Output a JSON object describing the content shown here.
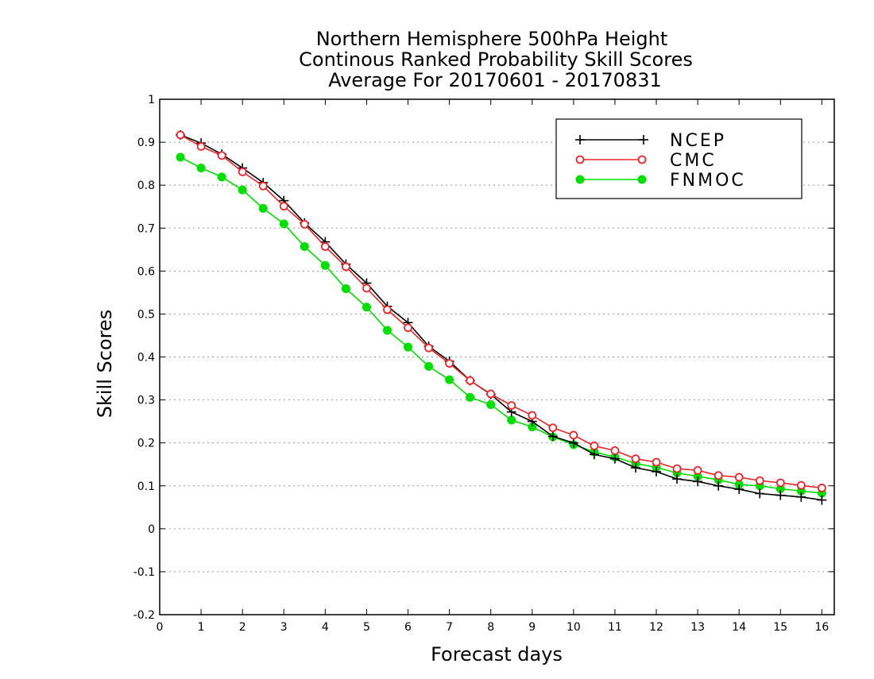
{
  "chart_data": {
    "type": "line",
    "title": "Northern Hemisphere 500hPa Height",
    "title_lines": [
      "Northern Hemisphere 500hPa Height",
      "Continous Ranked Probability Skill Scores",
      "Average For 20170601 - 20170831"
    ],
    "xlabel": "Forecast days",
    "ylabel": "Skill Scores",
    "xlim": [
      0,
      16.3
    ],
    "ylim": [
      -0.2,
      1
    ],
    "xticks": [
      "0",
      "1",
      "2",
      "3",
      "4",
      "5",
      "6",
      "7",
      "8",
      "9",
      "10",
      "11",
      "12",
      "13",
      "14",
      "15",
      "16"
    ],
    "yticks": [
      "-0.2",
      "-0.1",
      "0",
      "0.1",
      "0.2",
      "0.3",
      "0.4",
      "0.5",
      "0.6",
      "0.7",
      "0.8",
      "0.9",
      "1"
    ],
    "grid": true,
    "legend_position": "top-right",
    "x": [
      0.5,
      1,
      1.5,
      2,
      2.5,
      3,
      3.5,
      4,
      4.5,
      5,
      5.5,
      6,
      6.5,
      7,
      7.5,
      8,
      8.5,
      9,
      9.5,
      10,
      10.5,
      11,
      11.5,
      12,
      12.5,
      13,
      13.5,
      14,
      14.5,
      15,
      15.5,
      16
    ],
    "series": [
      {
        "name": "NCEP",
        "color": "#000000",
        "marker": "plus",
        "values": [
          0.917,
          0.898,
          0.872,
          0.84,
          0.806,
          0.764,
          0.712,
          0.668,
          0.616,
          0.572,
          0.518,
          0.48,
          0.425,
          0.39,
          0.345,
          0.313,
          0.272,
          0.25,
          0.215,
          0.2,
          0.173,
          0.163,
          0.142,
          0.133,
          0.116,
          0.11,
          0.1,
          0.092,
          0.082,
          0.078,
          0.074,
          0.067
        ]
      },
      {
        "name": "CMC",
        "color": "#e8262a",
        "marker": "open-circle",
        "values": [
          0.917,
          0.89,
          0.869,
          0.831,
          0.798,
          0.751,
          0.709,
          0.657,
          0.61,
          0.56,
          0.51,
          0.468,
          0.421,
          0.385,
          0.345,
          0.314,
          0.287,
          0.264,
          0.235,
          0.218,
          0.193,
          0.182,
          0.163,
          0.155,
          0.14,
          0.136,
          0.124,
          0.12,
          0.112,
          0.107,
          0.101,
          0.095
        ]
      },
      {
        "name": "FNMOC",
        "color": "#00dd00",
        "marker": "filled-circle",
        "values": [
          0.865,
          0.84,
          0.819,
          0.789,
          0.746,
          0.71,
          0.657,
          0.613,
          0.559,
          0.516,
          0.462,
          0.423,
          0.378,
          0.347,
          0.306,
          0.289,
          0.253,
          0.237,
          0.214,
          0.196,
          0.179,
          0.167,
          0.152,
          0.143,
          0.13,
          0.122,
          0.114,
          0.103,
          0.1,
          0.093,
          0.088,
          0.083
        ]
      }
    ]
  }
}
